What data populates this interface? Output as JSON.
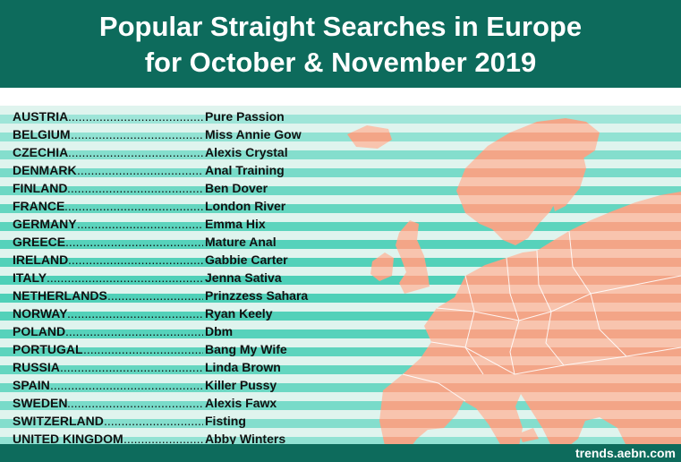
{
  "header": {
    "title_line1": "Popular Straight Searches in Europe",
    "title_line2": "for October & November 2019"
  },
  "footer": {
    "source": "trends.aebn.com"
  },
  "colors": {
    "header_bg": "#0d6b5c",
    "stripe_light": "#dff4ee",
    "stripe_teal": "#4fd0b8",
    "map_fill": "#f3a587",
    "map_stroke": "#ffffff"
  },
  "icons": {
    "map": "europe-map-icon"
  },
  "rows": [
    {
      "country": "AUSTRIA",
      "search": "Pure Passion"
    },
    {
      "country": "BELGIUM",
      "search": "Miss Annie Gow"
    },
    {
      "country": "CZECHIA",
      "search": "Alexis Crystal"
    },
    {
      "country": "DENMARK",
      "search": "Anal Training"
    },
    {
      "country": "FINLAND",
      "search": "Ben Dover"
    },
    {
      "country": "FRANCE",
      "search": "London River"
    },
    {
      "country": "GERMANY",
      "search": "Emma Hix"
    },
    {
      "country": "GREECE",
      "search": "Mature Anal"
    },
    {
      "country": "IRELAND",
      "search": "Gabbie Carter"
    },
    {
      "country": "ITALY",
      "search": "Jenna Sativa"
    },
    {
      "country": "NETHERLANDS",
      "search": "Prinzzess Sahara"
    },
    {
      "country": "NORWAY",
      "search": "Ryan Keely"
    },
    {
      "country": "POLAND",
      "search": "Dbm"
    },
    {
      "country": "PORTUGAL",
      "search": "Bang My Wife"
    },
    {
      "country": "RUSSIA",
      "search": "Linda Brown"
    },
    {
      "country": "SPAIN",
      "search": "Killer Pussy"
    },
    {
      "country": "SWEDEN",
      "search": "Alexis Fawx"
    },
    {
      "country": "SWITZERLAND",
      "search": "Fisting"
    },
    {
      "country": "UNITED KINGDOM",
      "search": "Abby Winters"
    }
  ]
}
